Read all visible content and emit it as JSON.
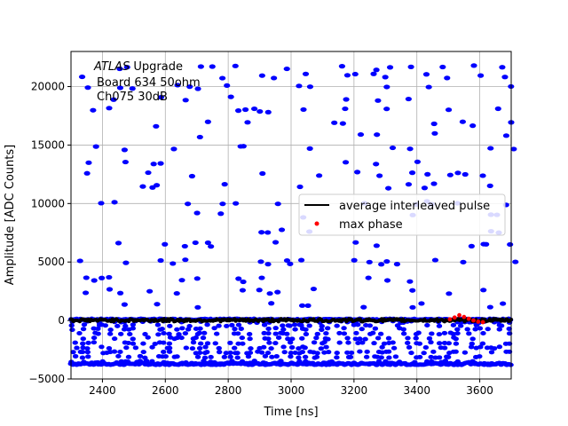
{
  "chart_data": {
    "type": "scatter",
    "title": "",
    "xlabel": "Time [ns]",
    "ylabel": "Amplitude [ADC Counts]",
    "xlim": [
      2300,
      3700
    ],
    "ylim": [
      -5000,
      23000
    ],
    "xticks": [
      2400,
      2600,
      2800,
      3000,
      3200,
      3400,
      3600
    ],
    "yticks": [
      -5000,
      0,
      5000,
      10000,
      15000,
      20000
    ],
    "grid": true,
    "legend_position": "center-right",
    "annotation": {
      "italic": "ATLAS",
      "rest": " Upgrade",
      "line2": "Board 634 50ohm",
      "line3": "Ch075 30dB"
    },
    "series": [
      {
        "name": "average interleaved pulse",
        "kind": "line",
        "color": "#000000",
        "x": [
          2300,
          2400,
          2500,
          2600,
          2700,
          2800,
          2900,
          3000,
          3100,
          3200,
          3300,
          3400,
          3500,
          3600,
          3700
        ],
        "y": [
          0,
          0,
          0,
          0,
          0,
          0,
          0,
          0,
          0,
          0,
          0,
          0,
          0,
          0,
          0
        ]
      },
      {
        "name": "max phase",
        "kind": "scatter",
        "color": "#ff0000",
        "x": [
          3505,
          3520,
          3535,
          3550,
          3565,
          3580,
          3595,
          3610
        ],
        "y": [
          100,
          250,
          450,
          300,
          150,
          0,
          -100,
          -150
        ]
      }
    ],
    "samples": {
      "color": "#0000ff",
      "x_range": [
        2300,
        3700
      ],
      "upper_levels": [
        21600,
        20900,
        20000,
        19000,
        18000,
        16800,
        15800,
        14700,
        13500,
        12500,
        11500,
        10000,
        9000,
        7600,
        6500,
        5000,
        3500,
        2500,
        1300
      ],
      "lower_levels": [
        -200,
        -500,
        -800,
        -1200,
        -1600,
        -2000,
        -2400,
        -2800,
        -3200,
        -3600,
        -3800
      ]
    }
  }
}
